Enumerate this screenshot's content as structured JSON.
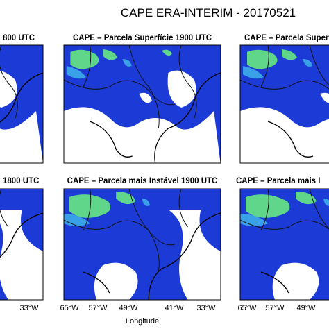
{
  "title": "CAPE ERA-INTERIM -  20170521",
  "panels": [
    {
      "title": "800 UTC"
    },
    {
      "title": "CAPE – Parcela Superfície 1900 UTC"
    },
    {
      "title": "CAPE – Parcela Superf"
    },
    {
      "title": "1800 UTC",
      "x_ticks": [
        "33°W"
      ]
    },
    {
      "title": "CAPE – Parcela mais Instável 1900 UTC",
      "x_ticks": [
        "65°W",
        "57°W",
        "49°W",
        "41°W",
        "33°W"
      ],
      "x_axis_label": "Longitude"
    },
    {
      "title": "CAPE – Parcela mais I",
      "x_ticks": [
        "65°W",
        "57°W",
        "49°W"
      ]
    }
  ]
}
